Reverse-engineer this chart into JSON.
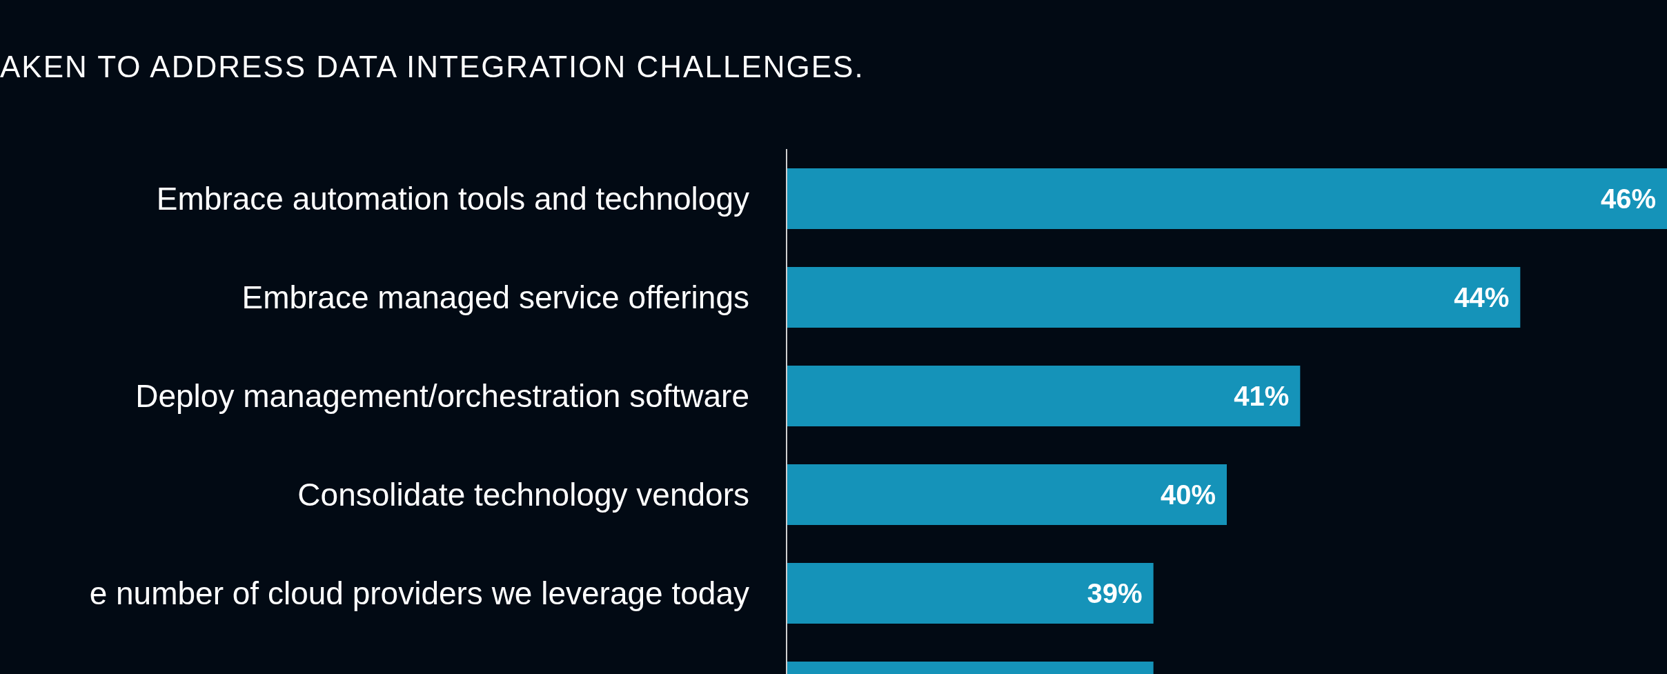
{
  "chart_data": {
    "type": "bar",
    "orientation": "horizontal",
    "title": "AKEN TO ADDRESS DATA INTEGRATION CHALLENGES.",
    "categories": [
      "Embrace automation tools and technology",
      "Embrace managed service offerings",
      "Deploy management/orchestration software",
      "Consolidate technology vendors",
      "e number of cloud providers we leverage today",
      null
    ],
    "values": [
      46,
      44,
      41,
      40,
      39,
      39
    ],
    "value_labels": [
      "46%",
      "44%",
      "41%",
      "40%",
      "39%",
      null
    ],
    "color": "#1593b9",
    "xlim": [
      34,
      46
    ],
    "tick_labels": "y"
  }
}
